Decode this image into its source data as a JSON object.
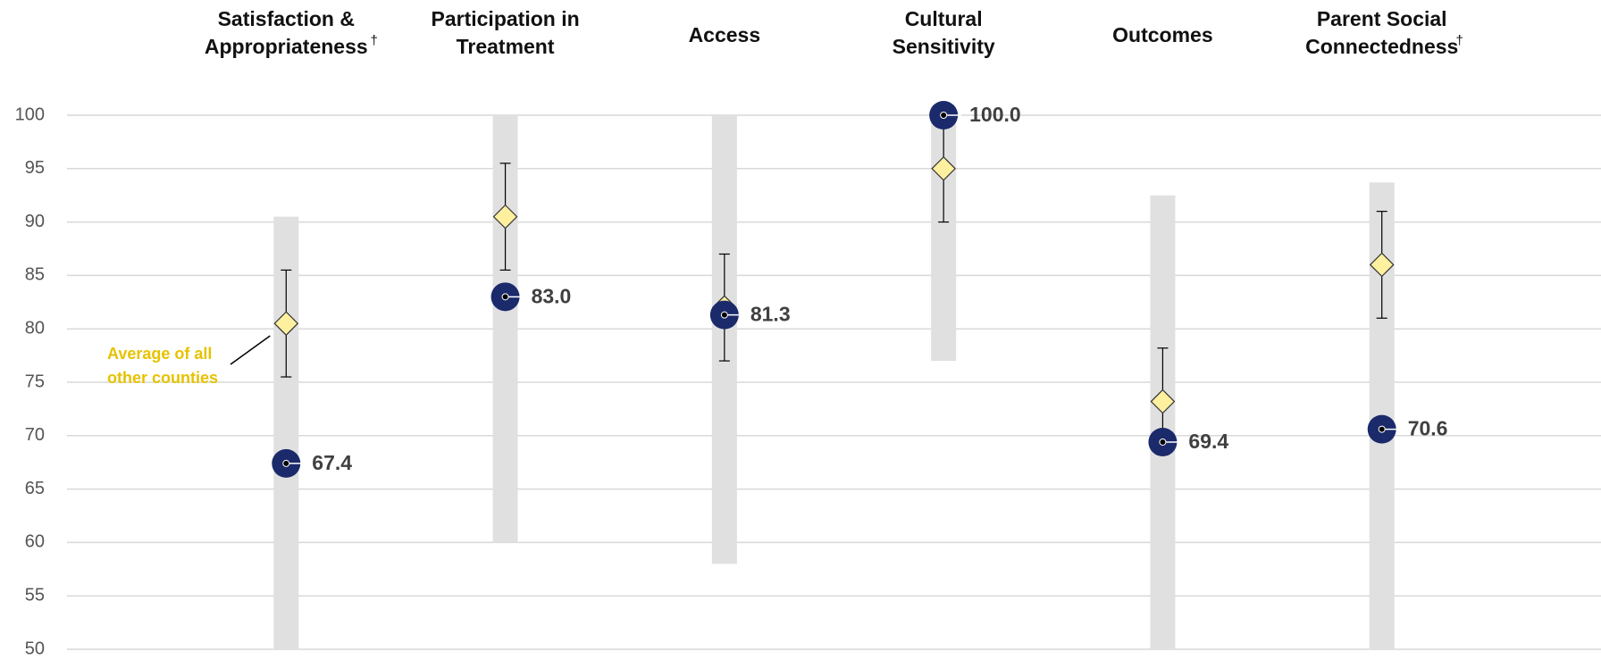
{
  "chart_data": {
    "type": "dot-range",
    "categories": [
      [
        "Satisfaction &",
        "Appropriateness"
      ],
      [
        "Participation in",
        "Treatment"
      ],
      [
        "Access"
      ],
      [
        "Cultural",
        "Sensitivity"
      ],
      [
        "Outcomes"
      ],
      [
        "Parent Social",
        "Connectedness"
      ]
    ],
    "category_marks": [
      {
        "category": 0,
        "text": "†"
      },
      {
        "category": 5,
        "text": "†"
      }
    ],
    "ylim": [
      50,
      100
    ],
    "yticks": [
      50,
      55,
      60,
      65,
      70,
      75,
      80,
      85,
      90,
      95,
      100
    ],
    "grid": true,
    "range": {
      "color": "#e0e0e0",
      "low": [
        50,
        60,
        58,
        77,
        50,
        50
      ],
      "high": [
        90.5,
        100,
        100,
        100,
        92.5,
        93.7
      ]
    },
    "county": {
      "color": "#1b2a6b",
      "values": [
        67.4,
        83,
        81.3,
        100,
        69.4,
        70.6
      ],
      "value_labels": [
        "67.4",
        "83.0",
        "81.3",
        "100.0",
        "69.4",
        "70.6"
      ]
    },
    "average": {
      "color": "#fff0a0",
      "values": [
        80.5,
        90.5,
        82,
        95,
        73.2,
        86
      ],
      "errors": [
        5,
        5,
        5,
        5,
        5,
        5
      ]
    },
    "annotation": {
      "lines": [
        "Average of all",
        "other counties"
      ],
      "color": "#e6c200",
      "category": 0
    }
  }
}
